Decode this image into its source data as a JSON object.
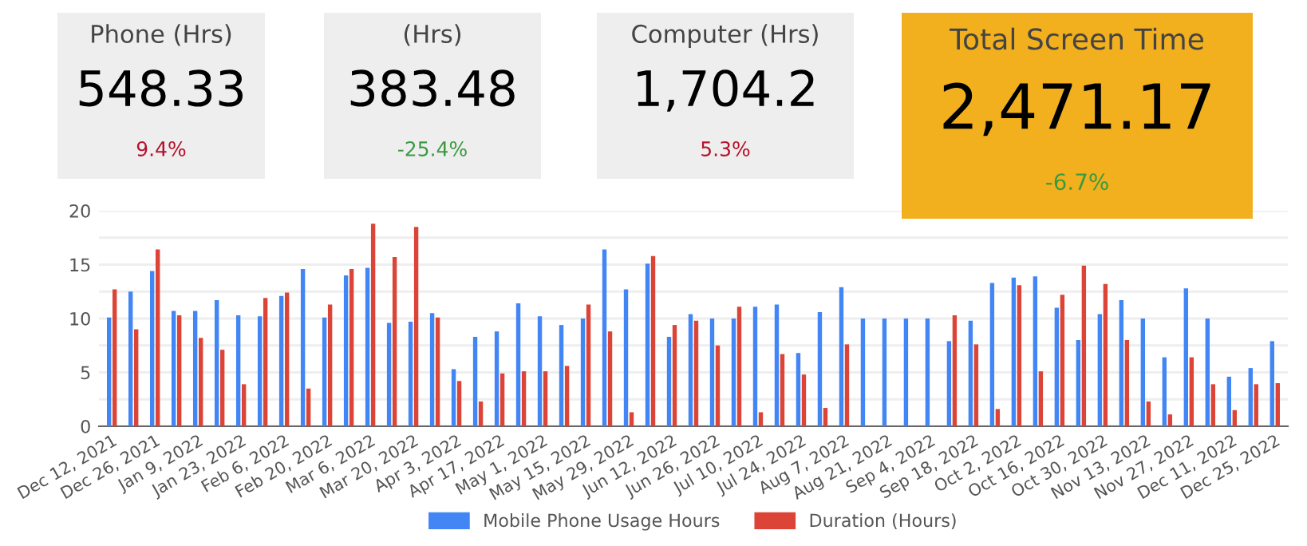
{
  "chart_data": [
    {
      "type": "other",
      "title": "Phone (Hrs)",
      "annotations": [
        "548.33",
        "9.4%"
      ],
      "colors": [
        "#000000",
        "#b8102b"
      ],
      "color": "#eeeeee"
    },
    {
      "type": "other",
      "title": "(Hrs)",
      "annotations": [
        "383.48",
        "-25.4%"
      ],
      "colors": [
        "#000000",
        "#3a9a3f"
      ],
      "color": "#eeeeee"
    },
    {
      "type": "other",
      "title": "Computer (Hrs)",
      "annotations": [
        "1,704.2",
        "5.3%"
      ],
      "colors": [
        "#000000",
        "#b8102b"
      ],
      "color": "#eeeeee"
    },
    {
      "type": "other",
      "title": "Total Screen Time",
      "annotations": [
        "2,471.17",
        "-6.7%"
      ],
      "colors": [
        "#000000",
        "#3a9a3f"
      ],
      "color": "#f2b01e"
    },
    {
      "type": "bar",
      "categories": [
        "Dec 12, 2021",
        null,
        "Dec 26, 2021",
        null,
        "Jan 9, 2022",
        null,
        "Jan 23, 2022",
        null,
        "Feb 6, 2022",
        null,
        "Feb 20, 2022",
        null,
        "Mar 6, 2022",
        null,
        "Mar 20, 2022",
        null,
        "Apr 3, 2022",
        null,
        "Apr 17, 2022",
        null,
        "May 1, 2022",
        null,
        "May 15, 2022",
        null,
        "May 29, 2022",
        null,
        "Jun 12, 2022",
        null,
        "Jun 26, 2022",
        null,
        "Jul 10, 2022",
        null,
        "Jul 24, 2022",
        null,
        "Aug 7, 2022",
        null,
        "Aug 21, 2022",
        null,
        "Sep 4, 2022",
        null,
        "Sep 18, 2022",
        null,
        "Oct 2, 2022",
        null,
        "Oct 16, 2022",
        null,
        "Oct 30, 2022",
        null,
        "Nov 13, 2022",
        null,
        "Nov 27, 2022",
        null,
        "Dec 11, 2022",
        null,
        "Dec 25, 2022"
      ],
      "series": [
        {
          "name": "Mobile Phone Usage Hours",
          "color": "#4285f4",
          "values": [
            10.1,
            12.5,
            14.4,
            10.7,
            10.7,
            11.7,
            10.3,
            10.2,
            12.1,
            14.6,
            10.1,
            14.0,
            14.7,
            9.6,
            9.7,
            10.5,
            5.3,
            8.3,
            8.8,
            11.4,
            10.2,
            9.4,
            10.0,
            16.4,
            12.7,
            15.1,
            8.3,
            10.4,
            10.0,
            10.0,
            11.1,
            11.3,
            6.8,
            10.6,
            12.9,
            10.0,
            10.0,
            10.0,
            10.0,
            7.9,
            9.8,
            13.3,
            13.8,
            13.9,
            11.0,
            8.0,
            10.4,
            11.7,
            10.0,
            6.4,
            12.8,
            10.0,
            4.6,
            5.4,
            7.9
          ]
        },
        {
          "name": "Duration (Hours)",
          "color": "#db4437",
          "values": [
            12.7,
            9.0,
            16.4,
            10.3,
            8.2,
            7.1,
            3.9,
            11.9,
            12.4,
            3.5,
            11.3,
            14.6,
            18.8,
            15.7,
            18.5,
            10.1,
            4.2,
            2.3,
            4.9,
            5.1,
            5.1,
            5.6,
            11.3,
            8.8,
            1.3,
            15.8,
            9.4,
            9.8,
            7.5,
            11.1,
            1.3,
            6.7,
            4.8,
            1.7,
            7.6,
            0,
            0,
            0,
            0,
            10.3,
            7.6,
            1.6,
            13.1,
            5.1,
            12.2,
            14.9,
            13.2,
            8.0,
            2.3,
            1.1,
            6.4,
            3.9,
            1.5,
            3.9,
            4.0
          ]
        }
      ],
      "ylim": [
        0,
        20
      ],
      "yticks": [
        0,
        {
          "value": 2.5,
          "label": null
        },
        5,
        {
          "value": 7.5,
          "label": null
        },
        10,
        {
          "value": 12.5,
          "label": null
        },
        15,
        {
          "value": 17.5,
          "label": null
        },
        20
      ],
      "grid": "y",
      "legend": "bottom"
    }
  ]
}
